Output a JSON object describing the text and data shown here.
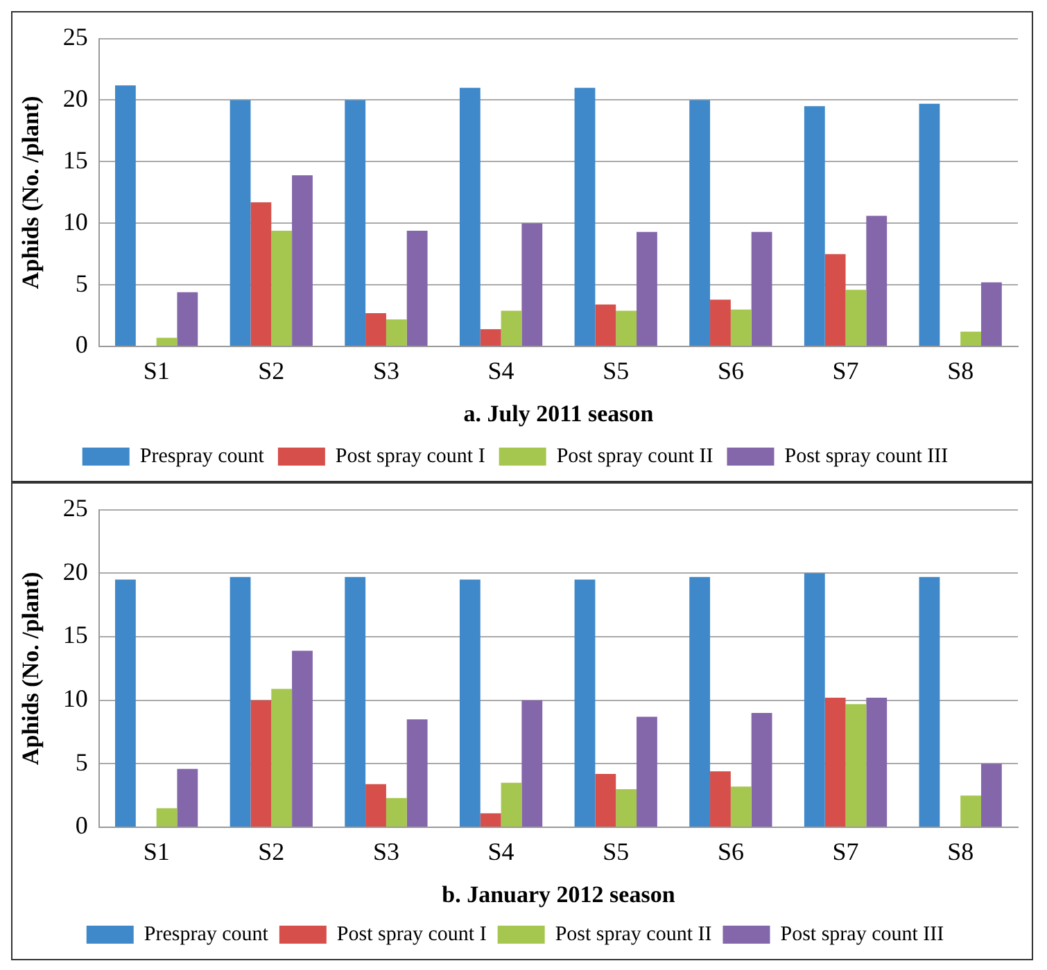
{
  "chart_data": [
    {
      "type": "bar",
      "xlabel": "a. July 2011 season",
      "ylabel": "Aphids (No. /plant)",
      "categories": [
        "S1",
        "S2",
        "S3",
        "S4",
        "S5",
        "S6",
        "S7",
        "S8"
      ],
      "ylim": [
        0,
        25
      ],
      "yticks": [
        0,
        5,
        10,
        15,
        20,
        25
      ],
      "grid": "y",
      "legend": "bottom",
      "series": [
        {
          "name": "Prespray count",
          "color": "#3f88c9",
          "values": [
            21.2,
            20,
            20,
            21,
            21,
            20,
            19.5,
            19.7
          ]
        },
        {
          "name": "Post spray count I",
          "color": "#d64f4a",
          "values": [
            0,
            11.7,
            2.7,
            1.4,
            3.4,
            3.8,
            7.5,
            0
          ]
        },
        {
          "name": "Post spray count II",
          "color": "#a6c74f",
          "values": [
            0.7,
            9.4,
            2.2,
            2.9,
            2.9,
            3.0,
            4.6,
            1.2
          ]
        },
        {
          "name": "Post spray count III",
          "color": "#8466aa",
          "values": [
            4.4,
            13.9,
            9.4,
            10,
            9.3,
            9.3,
            10.6,
            5.2
          ]
        }
      ]
    },
    {
      "type": "bar",
      "xlabel": "b. January 2012 season",
      "ylabel": "Aphids (No. /plant)",
      "categories": [
        "S1",
        "S2",
        "S3",
        "S4",
        "S5",
        "S6",
        "S7",
        "S8"
      ],
      "ylim": [
        0,
        25
      ],
      "yticks": [
        0,
        5,
        10,
        15,
        20,
        25
      ],
      "grid": "y",
      "legend": "bottom",
      "series": [
        {
          "name": "Prespray count",
          "color": "#3f88c9",
          "values": [
            19.5,
            19.7,
            19.7,
            19.5,
            19.5,
            19.7,
            20,
            19.7
          ]
        },
        {
          "name": "Post spray count I",
          "color": "#d64f4a",
          "values": [
            0,
            10,
            3.4,
            1.1,
            4.2,
            4.4,
            10.2,
            0
          ]
        },
        {
          "name": "Post spray count II",
          "color": "#a6c74f",
          "values": [
            1.5,
            10.9,
            2.3,
            3.5,
            3,
            3.2,
            9.7,
            2.5
          ]
        },
        {
          "name": "Post spray count III",
          "color": "#8466aa",
          "values": [
            4.6,
            13.9,
            8.5,
            10,
            8.7,
            9,
            10.2,
            5
          ]
        }
      ]
    }
  ]
}
